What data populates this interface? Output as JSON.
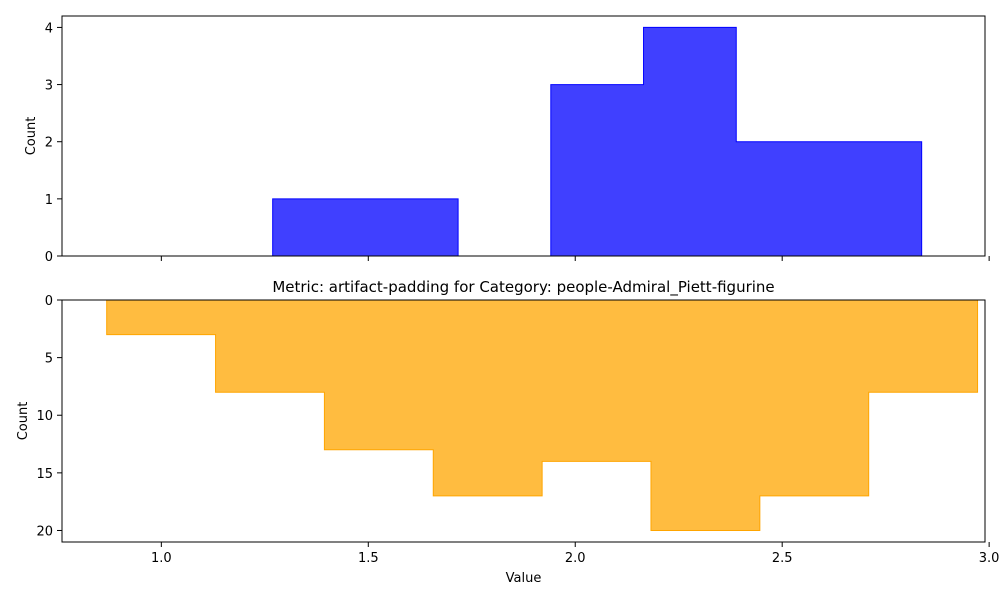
{
  "chart_data": [
    {
      "type": "bar",
      "subtype": "histogram-step-filled",
      "title": "",
      "xlabel": "",
      "ylabel": "Count",
      "xlim": [
        0.76,
        2.99
      ],
      "ylim": [
        0,
        4.2
      ],
      "y_inverted": false,
      "x_ticks_labels_shown": false,
      "x_ticks": [
        1.0,
        1.5,
        2.0,
        2.5,
        3.0
      ],
      "y_ticks": [
        0,
        1,
        2,
        3,
        4
      ],
      "color": "#0000ff",
      "fill_opacity": 0.75,
      "bin_edges": [
        0.821,
        1.045,
        1.269,
        1.493,
        1.717,
        1.941,
        2.165,
        2.389,
        2.613,
        2.837
      ],
      "values": [
        0,
        0,
        1,
        1,
        0,
        3,
        4,
        2,
        2
      ]
    },
    {
      "type": "bar",
      "subtype": "histogram-step-filled",
      "title": "Metric: artifact-padding for Category: people-Admiral_Piett-figurine",
      "xlabel": "Value",
      "ylabel": "Count",
      "xlim": [
        0.76,
        2.99
      ],
      "ylim": [
        0,
        21
      ],
      "y_inverted": true,
      "x_ticks": [
        1.0,
        1.5,
        2.0,
        2.5,
        3.0
      ],
      "x_tick_labels": [
        "1.0",
        "1.5",
        "2.0",
        "2.5",
        "3.0"
      ],
      "y_ticks": [
        0,
        5,
        10,
        15,
        20
      ],
      "color": "#ffa500",
      "fill_opacity": 0.75,
      "bin_edges": [
        0.868,
        1.131,
        1.394,
        1.657,
        1.92,
        2.183,
        2.446,
        2.709,
        2.972
      ],
      "values": [
        3,
        8,
        13,
        17,
        14,
        20,
        17,
        8
      ]
    }
  ]
}
